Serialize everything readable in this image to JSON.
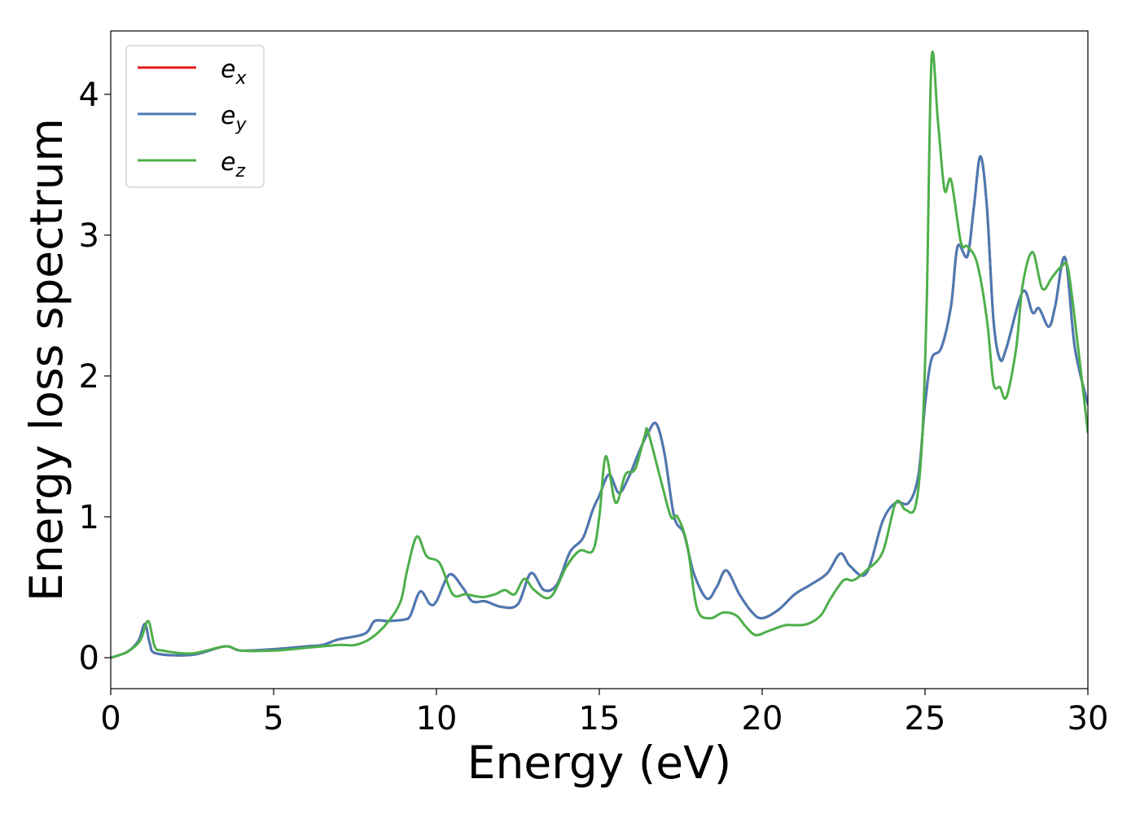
{
  "chart_data": {
    "type": "line",
    "title": "",
    "xlabel": "Energy (eV)",
    "ylabel": "Energy loss spectrum",
    "xlim": [
      0,
      30
    ],
    "ylim": [
      -0.22,
      4.45
    ],
    "xticks": [
      0,
      5,
      10,
      15,
      20,
      25,
      30
    ],
    "xtick_labels": [
      "0",
      "5",
      "10",
      "15",
      "20",
      "25",
      "30"
    ],
    "yticks": [
      0,
      1,
      2,
      3,
      4
    ],
    "ytick_labels": [
      "0",
      "1",
      "2",
      "3",
      "4"
    ],
    "grid": false,
    "legend_position": "top-left",
    "series": [
      {
        "name": "e_x",
        "label_base": "e",
        "label_sub": "x",
        "color": "#e41a1c",
        "points": [
          [
            0,
            0
          ],
          [
            0.5,
            0.04
          ],
          [
            0.85,
            0.12
          ],
          [
            1.05,
            0.24
          ],
          [
            1.2,
            0.1
          ],
          [
            1.4,
            0.03
          ],
          [
            2.5,
            0.02
          ],
          [
            3.5,
            0.08
          ],
          [
            4,
            0.05
          ],
          [
            5,
            0.06
          ],
          [
            6,
            0.08
          ],
          [
            6.5,
            0.09
          ],
          [
            7,
            0.13
          ],
          [
            7.8,
            0.17
          ],
          [
            8.1,
            0.26
          ],
          [
            8.5,
            0.26
          ],
          [
            9,
            0.27
          ],
          [
            9.2,
            0.3
          ],
          [
            9.5,
            0.47
          ],
          [
            9.8,
            0.38
          ],
          [
            10,
            0.4
          ],
          [
            10.4,
            0.59
          ],
          [
            10.8,
            0.5
          ],
          [
            11.1,
            0.4
          ],
          [
            11.5,
            0.4
          ],
          [
            12,
            0.36
          ],
          [
            12.5,
            0.38
          ],
          [
            12.9,
            0.6
          ],
          [
            13.3,
            0.48
          ],
          [
            13.7,
            0.52
          ],
          [
            14.1,
            0.75
          ],
          [
            14.5,
            0.85
          ],
          [
            14.8,
            1.05
          ],
          [
            15.0,
            1.15
          ],
          [
            15.3,
            1.3
          ],
          [
            15.6,
            1.17
          ],
          [
            15.9,
            1.28
          ],
          [
            16.2,
            1.45
          ],
          [
            16.5,
            1.6
          ],
          [
            16.75,
            1.66
          ],
          [
            17,
            1.45
          ],
          [
            17.3,
            1.0
          ],
          [
            17.6,
            0.88
          ],
          [
            17.9,
            0.6
          ],
          [
            18.3,
            0.42
          ],
          [
            18.6,
            0.5
          ],
          [
            18.9,
            0.62
          ],
          [
            19.3,
            0.45
          ],
          [
            19.7,
            0.32
          ],
          [
            20,
            0.28
          ],
          [
            20.5,
            0.34
          ],
          [
            21,
            0.45
          ],
          [
            21.5,
            0.52
          ],
          [
            22,
            0.6
          ],
          [
            22.4,
            0.74
          ],
          [
            22.7,
            0.65
          ],
          [
            23.2,
            0.6
          ],
          [
            23.7,
            0.97
          ],
          [
            24.1,
            1.1
          ],
          [
            24.5,
            1.1
          ],
          [
            24.8,
            1.3
          ],
          [
            25,
            1.8
          ],
          [
            25.2,
            2.12
          ],
          [
            25.5,
            2.2
          ],
          [
            25.8,
            2.5
          ],
          [
            26.0,
            2.92
          ],
          [
            26.3,
            2.85
          ],
          [
            26.5,
            3.2
          ],
          [
            26.7,
            3.56
          ],
          [
            26.9,
            3.2
          ],
          [
            27.1,
            2.4
          ],
          [
            27.3,
            2.12
          ],
          [
            27.5,
            2.2
          ],
          [
            28,
            2.6
          ],
          [
            28.3,
            2.45
          ],
          [
            28.5,
            2.48
          ],
          [
            28.8,
            2.35
          ],
          [
            29.0,
            2.5
          ],
          [
            29.3,
            2.84
          ],
          [
            29.6,
            2.2
          ],
          [
            30,
            1.8
          ]
        ]
      },
      {
        "name": "e_y",
        "label_base": "e",
        "label_sub": "y",
        "color": "#4a7ab5",
        "points": [
          [
            0,
            0
          ],
          [
            0.5,
            0.04
          ],
          [
            0.85,
            0.12
          ],
          [
            1.05,
            0.24
          ],
          [
            1.2,
            0.1
          ],
          [
            1.4,
            0.03
          ],
          [
            2.5,
            0.02
          ],
          [
            3.5,
            0.08
          ],
          [
            4,
            0.05
          ],
          [
            5,
            0.06
          ],
          [
            6,
            0.08
          ],
          [
            6.5,
            0.09
          ],
          [
            7,
            0.13
          ],
          [
            7.8,
            0.17
          ],
          [
            8.1,
            0.26
          ],
          [
            8.5,
            0.26
          ],
          [
            9,
            0.27
          ],
          [
            9.2,
            0.3
          ],
          [
            9.5,
            0.47
          ],
          [
            9.8,
            0.38
          ],
          [
            10,
            0.4
          ],
          [
            10.4,
            0.59
          ],
          [
            10.8,
            0.5
          ],
          [
            11.1,
            0.4
          ],
          [
            11.5,
            0.4
          ],
          [
            12,
            0.36
          ],
          [
            12.5,
            0.38
          ],
          [
            12.9,
            0.6
          ],
          [
            13.3,
            0.48
          ],
          [
            13.7,
            0.52
          ],
          [
            14.1,
            0.75
          ],
          [
            14.5,
            0.85
          ],
          [
            14.8,
            1.05
          ],
          [
            15.0,
            1.15
          ],
          [
            15.3,
            1.3
          ],
          [
            15.6,
            1.17
          ],
          [
            15.9,
            1.28
          ],
          [
            16.2,
            1.45
          ],
          [
            16.5,
            1.6
          ],
          [
            16.75,
            1.66
          ],
          [
            17,
            1.45
          ],
          [
            17.3,
            1.0
          ],
          [
            17.6,
            0.88
          ],
          [
            17.9,
            0.6
          ],
          [
            18.3,
            0.42
          ],
          [
            18.6,
            0.5
          ],
          [
            18.9,
            0.62
          ],
          [
            19.3,
            0.45
          ],
          [
            19.7,
            0.32
          ],
          [
            20,
            0.28
          ],
          [
            20.5,
            0.34
          ],
          [
            21,
            0.45
          ],
          [
            21.5,
            0.52
          ],
          [
            22,
            0.6
          ],
          [
            22.4,
            0.74
          ],
          [
            22.7,
            0.65
          ],
          [
            23.2,
            0.6
          ],
          [
            23.7,
            0.97
          ],
          [
            24.1,
            1.1
          ],
          [
            24.5,
            1.1
          ],
          [
            24.8,
            1.3
          ],
          [
            25,
            1.8
          ],
          [
            25.2,
            2.12
          ],
          [
            25.5,
            2.2
          ],
          [
            25.8,
            2.5
          ],
          [
            26.0,
            2.92
          ],
          [
            26.3,
            2.85
          ],
          [
            26.5,
            3.2
          ],
          [
            26.7,
            3.56
          ],
          [
            26.9,
            3.2
          ],
          [
            27.1,
            2.4
          ],
          [
            27.3,
            2.12
          ],
          [
            27.5,
            2.2
          ],
          [
            28,
            2.6
          ],
          [
            28.3,
            2.45
          ],
          [
            28.5,
            2.48
          ],
          [
            28.8,
            2.35
          ],
          [
            29.0,
            2.5
          ],
          [
            29.3,
            2.84
          ],
          [
            29.6,
            2.2
          ],
          [
            30,
            1.8
          ]
        ]
      },
      {
        "name": "e_z",
        "label_base": "e",
        "label_sub": "z",
        "color": "#4daf4a",
        "points": [
          [
            0,
            0
          ],
          [
            0.5,
            0.04
          ],
          [
            0.9,
            0.12
          ],
          [
            1.15,
            0.26
          ],
          [
            1.35,
            0.08
          ],
          [
            1.6,
            0.05
          ],
          [
            2.5,
            0.03
          ],
          [
            3.5,
            0.08
          ],
          [
            4,
            0.05
          ],
          [
            5,
            0.05
          ],
          [
            6,
            0.07
          ],
          [
            7,
            0.09
          ],
          [
            7.5,
            0.09
          ],
          [
            8,
            0.14
          ],
          [
            8.5,
            0.25
          ],
          [
            8.9,
            0.4
          ],
          [
            9.1,
            0.62
          ],
          [
            9.4,
            0.86
          ],
          [
            9.7,
            0.72
          ],
          [
            10.1,
            0.67
          ],
          [
            10.5,
            0.45
          ],
          [
            10.9,
            0.45
          ],
          [
            11.4,
            0.43
          ],
          [
            11.8,
            0.45
          ],
          [
            12.1,
            0.48
          ],
          [
            12.4,
            0.45
          ],
          [
            12.7,
            0.56
          ],
          [
            13.0,
            0.48
          ],
          [
            13.5,
            0.43
          ],
          [
            14,
            0.65
          ],
          [
            14.4,
            0.76
          ],
          [
            14.8,
            0.76
          ],
          [
            15.0,
            1.0
          ],
          [
            15.2,
            1.43
          ],
          [
            15.5,
            1.1
          ],
          [
            15.8,
            1.3
          ],
          [
            16.1,
            1.34
          ],
          [
            16.4,
            1.58
          ],
          [
            16.5,
            1.6
          ],
          [
            16.9,
            1.25
          ],
          [
            17.2,
            1.0
          ],
          [
            17.4,
            1.0
          ],
          [
            17.7,
            0.8
          ],
          [
            18.0,
            0.35
          ],
          [
            18.4,
            0.28
          ],
          [
            18.8,
            0.32
          ],
          [
            19.2,
            0.3
          ],
          [
            19.5,
            0.22
          ],
          [
            19.8,
            0.16
          ],
          [
            20.2,
            0.19
          ],
          [
            20.7,
            0.23
          ],
          [
            21,
            0.23
          ],
          [
            21.4,
            0.24
          ],
          [
            21.8,
            0.3
          ],
          [
            22.1,
            0.42
          ],
          [
            22.5,
            0.55
          ],
          [
            22.8,
            0.55
          ],
          [
            23.2,
            0.62
          ],
          [
            23.7,
            0.75
          ],
          [
            24.1,
            1.1
          ],
          [
            24.4,
            1.05
          ],
          [
            24.7,
            1.07
          ],
          [
            24.9,
            1.5
          ],
          [
            25.05,
            2.5
          ],
          [
            25.2,
            4.25
          ],
          [
            25.4,
            3.8
          ],
          [
            25.6,
            3.32
          ],
          [
            25.8,
            3.39
          ],
          [
            26.1,
            2.95
          ],
          [
            26.3,
            2.92
          ],
          [
            26.6,
            2.8
          ],
          [
            26.9,
            2.4
          ],
          [
            27.1,
            1.95
          ],
          [
            27.3,
            1.92
          ],
          [
            27.5,
            1.85
          ],
          [
            27.8,
            2.2
          ],
          [
            28.0,
            2.65
          ],
          [
            28.3,
            2.88
          ],
          [
            28.6,
            2.62
          ],
          [
            28.9,
            2.7
          ],
          [
            29.2,
            2.78
          ],
          [
            29.4,
            2.75
          ],
          [
            29.7,
            2.2
          ],
          [
            30,
            1.6
          ]
        ]
      }
    ]
  }
}
